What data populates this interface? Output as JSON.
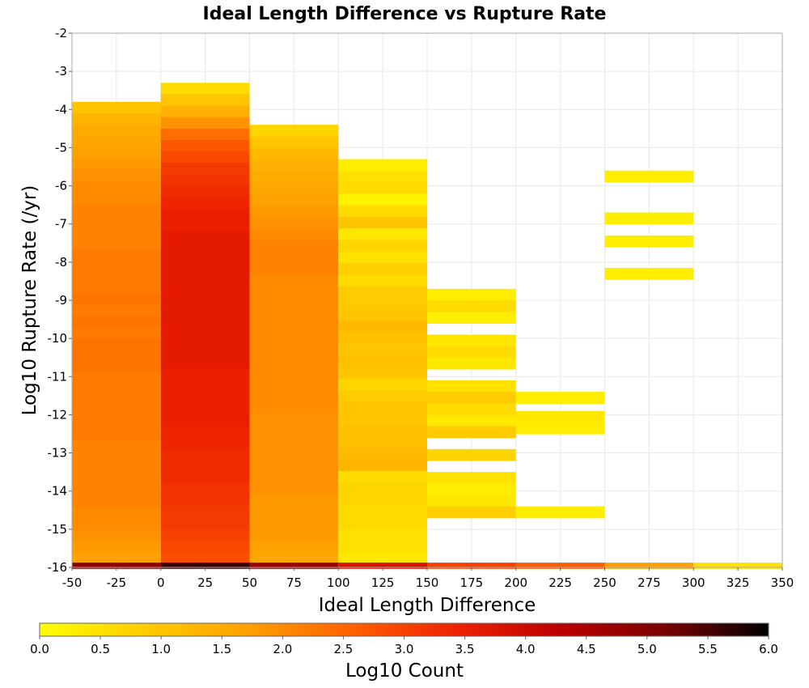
{
  "chart_data": {
    "type": "heatmap",
    "title": "Ideal Length Difference vs Rupture Rate",
    "xlabel": "Ideal Length Difference",
    "ylabel": "Log10 Rupture Rate (/yr)",
    "colorbar_label": "Log10 Count",
    "xlim": [
      -50,
      350
    ],
    "ylim": [
      -16,
      -2
    ],
    "xticks": [
      "-50",
      "-25",
      "0",
      "25",
      "50",
      "75",
      "100",
      "125",
      "150",
      "175",
      "200",
      "225",
      "250",
      "275",
      "300",
      "325",
      "350"
    ],
    "yticks": [
      "-2",
      "-3",
      "-4",
      "-5",
      "-6",
      "-7",
      "-8",
      "-9",
      "-10",
      "-11",
      "-12",
      "-13",
      "-14",
      "-15",
      "-16"
    ],
    "colorbar_range": [
      0,
      6
    ],
    "colorbar_ticks": [
      "0.0",
      "0.5",
      "1.0",
      "1.5",
      "2.0",
      "2.5",
      "3.0",
      "3.5",
      "4.0",
      "4.5",
      "5.0",
      "5.5",
      "6.0"
    ],
    "colorscale": [
      "#ffff00",
      "#ffcc00",
      "#ffa000",
      "#ff6000",
      "#ee2200",
      "#bb0000",
      "#7a0000",
      "#000000"
    ],
    "grid": true,
    "x_bin_width": 50,
    "y_bin_height": 0.3,
    "columns": [
      {
        "x": -25,
        "y_top": -3.8,
        "y_bottom": -15.9,
        "values": [
          1.0,
          1.3,
          1.5,
          1.6,
          1.7,
          1.8,
          1.9,
          2.0,
          2.0,
          2.1,
          2.1,
          2.1,
          2.1,
          2.2,
          2.2,
          2.2,
          2.2,
          2.3,
          2.2,
          2.3,
          2.2,
          2.3,
          2.3,
          2.3,
          2.2,
          2.2,
          2.2,
          2.2,
          2.2,
          2.2,
          2.1,
          2.1,
          2.1,
          2.1,
          2.1,
          2.1,
          2.0,
          2.0,
          1.9,
          1.8,
          1.7
        ]
      },
      {
        "x": 25,
        "y_top": -3.3,
        "y_bottom": -15.9,
        "values": [
          0.6,
          1.0,
          1.4,
          1.9,
          2.4,
          2.7,
          2.9,
          3.1,
          3.2,
          3.3,
          3.4,
          3.5,
          3.5,
          3.6,
          3.6,
          3.6,
          3.6,
          3.6,
          3.6,
          3.6,
          3.6,
          3.6,
          3.6,
          3.6,
          3.6,
          3.5,
          3.5,
          3.5,
          3.5,
          3.5,
          3.4,
          3.4,
          3.3,
          3.3,
          3.3,
          3.2,
          3.2,
          3.1,
          3.1,
          3.0,
          2.9,
          2.8
        ]
      },
      {
        "x": 75,
        "y_top": -4.4,
        "y_bottom": -15.9,
        "values": [
          0.7,
          1.0,
          1.2,
          1.4,
          1.5,
          1.6,
          1.7,
          1.8,
          1.9,
          2.0,
          2.1,
          2.1,
          2.1,
          2.0,
          2.0,
          2.0,
          2.0,
          2.0,
          2.0,
          2.0,
          2.0,
          2.0,
          2.0,
          2.0,
          2.0,
          1.9,
          1.9,
          1.9,
          1.9,
          1.9,
          1.9,
          1.9,
          1.8,
          1.8,
          1.8,
          1.8,
          1.7,
          1.6
        ]
      },
      {
        "x": 125,
        "y_top": -5.3,
        "y_bottom": -15.9,
        "values": [
          0.3,
          0.5,
          0.6,
          0.2,
          0.6,
          1.0,
          0.4,
          0.7,
          0.5,
          0.8,
          0.6,
          0.9,
          0.9,
          1.0,
          1.2,
          1.1,
          1.0,
          1.1,
          1.0,
          0.7,
          0.9,
          1.0,
          1.0,
          1.1,
          1.1,
          1.2,
          1.3,
          0.6,
          0.7,
          0.7,
          0.6,
          0.6,
          0.5,
          0.5,
          0.4
        ]
      },
      {
        "x": 175,
        "bins": [
          {
            "y": -8.85,
            "v": 0.3
          },
          {
            "y": -9.15,
            "v": 0.6
          },
          {
            "y": -9.45,
            "v": 0.3
          },
          {
            "y": -10.05,
            "v": 0.4
          },
          {
            "y": -10.35,
            "v": 0.6
          },
          {
            "y": -10.65,
            "v": 0.4
          },
          {
            "y": -11.25,
            "v": 0.5
          },
          {
            "y": -11.55,
            "v": 0.9
          },
          {
            "y": -11.85,
            "v": 0.6
          },
          {
            "y": -12.15,
            "v": 0.4
          },
          {
            "y": -12.45,
            "v": 0.9
          },
          {
            "y": -13.05,
            "v": 0.7
          },
          {
            "y": -13.65,
            "v": 0.5
          },
          {
            "y": -13.95,
            "v": 0.3
          },
          {
            "y": -14.25,
            "v": 0.4
          },
          {
            "y": -14.55,
            "v": 0.8
          }
        ]
      },
      {
        "x": 225,
        "bins": [
          {
            "y": -11.55,
            "v": 0.3
          },
          {
            "y": -12.05,
            "v": 0.4
          },
          {
            "y": -12.35,
            "v": 0.3
          },
          {
            "y": -14.55,
            "v": 0.3
          }
        ]
      },
      {
        "x": 275,
        "bins": [
          {
            "y": -5.75,
            "v": 0.3
          },
          {
            "y": -6.85,
            "v": 0.3
          },
          {
            "y": -7.45,
            "v": 0.3
          },
          {
            "y": -8.3,
            "v": 0.3
          }
        ]
      }
    ],
    "bottom_row": {
      "y": -15.95,
      "height": 0.15,
      "cells": [
        {
          "x": -25,
          "v": 4.8
        },
        {
          "x": 25,
          "v": 5.6
        },
        {
          "x": 75,
          "v": 4.7
        },
        {
          "x": 125,
          "v": 3.8
        },
        {
          "x": 175,
          "v": 3.0
        },
        {
          "x": 225,
          "v": 2.6
        },
        {
          "x": 275,
          "v": 1.7
        },
        {
          "x": 325,
          "v": 0.5
        }
      ]
    }
  }
}
